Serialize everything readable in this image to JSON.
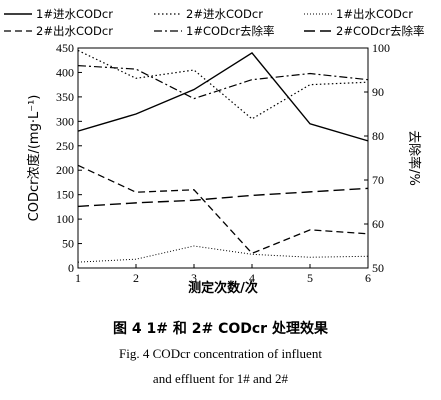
{
  "chart_data": {
    "type": "line",
    "xlabel": "测定次数/次",
    "ylabel_left": "CODcr浓度/(mg·L⁻¹)",
    "ylabel_right": "去除率/%",
    "x": [
      1,
      2,
      3,
      4,
      5,
      6
    ],
    "xlim": [
      1,
      6
    ],
    "ylim_left": [
      0,
      450
    ],
    "ylim_right": [
      50,
      100
    ],
    "x_ticks": [
      "1",
      "2",
      "3",
      "4",
      "5",
      "6"
    ],
    "left_ticks": [
      "0",
      "50",
      "100",
      "150",
      "200",
      "250",
      "300",
      "350",
      "400",
      "450"
    ],
    "right_ticks": [
      "50",
      "60",
      "70",
      "80",
      "90",
      "100"
    ],
    "grid": false,
    "legend_position": "top",
    "series": [
      {
        "name": "1#进水CODcr",
        "axis": "left",
        "style": "solid",
        "values": [
          280,
          315,
          365,
          440,
          295,
          260
        ]
      },
      {
        "name": "2#进水CODcr",
        "axis": "left",
        "style": "dotted",
        "values": [
          445,
          388,
          405,
          305,
          375,
          380
        ]
      },
      {
        "name": "1#出水CODcr",
        "axis": "left",
        "style": "fine-dotted",
        "values": [
          12,
          18,
          45,
          28,
          22,
          24
        ]
      },
      {
        "name": "2#出水CODcr",
        "axis": "left",
        "style": "dashed",
        "values": [
          210,
          155,
          160,
          30,
          78,
          70
        ]
      },
      {
        "name": "1#CODcr去除率",
        "axis": "right",
        "style": "dashdot",
        "values": [
          96,
          95.2,
          88.5,
          92.8,
          94.2,
          92.8
        ]
      },
      {
        "name": "2#CODcr去除率",
        "axis": "right",
        "style": "long-dash",
        "values": [
          64,
          64.8,
          65.4,
          66.5,
          67.3,
          68.1
        ]
      }
    ]
  },
  "caption": {
    "cn": "图 4   1# 和 2# CODcr 处理效果",
    "en_line1": "Fig. 4    CODcr concentration of influent",
    "en_line2": "and effluent for 1# and 2#"
  }
}
